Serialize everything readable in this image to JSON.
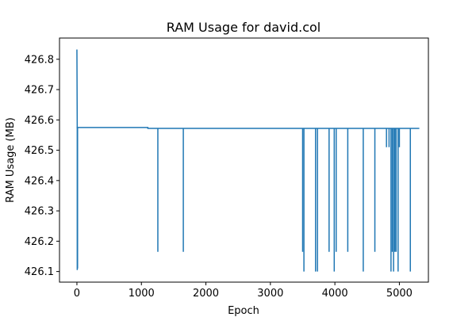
{
  "chart_data": {
    "type": "line",
    "title": "RAM Usage for david.col",
    "xlabel": "Epoch",
    "ylabel": "RAM Usage (MB)",
    "xlim": [
      -270,
      5450
    ],
    "ylim": [
      426.065,
      426.87
    ],
    "xticks": [
      0,
      1000,
      2000,
      3000,
      4000,
      5000
    ],
    "yticks": [
      426.1,
      426.2,
      426.3,
      426.4,
      426.5,
      426.6,
      426.7,
      426.8
    ],
    "ytick_labels": [
      "426.1",
      "426.2",
      "426.3",
      "426.4",
      "426.5",
      "426.6",
      "426.7",
      "426.8"
    ],
    "grid": false,
    "line_color": "#1f77b4",
    "series": [
      {
        "baseline_segments": [
          {
            "x": [
              0,
              5
            ],
            "y": [
              426.83,
              426.575
            ]
          },
          {
            "x": [
              5,
              1100
            ],
            "y": [
              426.575,
              426.575
            ]
          },
          {
            "x": [
              1100,
              5300
            ],
            "y": [
              426.572,
              426.572
            ]
          }
        ],
        "dips": [
          {
            "x": 5,
            "y": 426.105
          },
          {
            "x": 10,
            "y": 426.11
          },
          {
            "x": 1255,
            "y": 426.165
          },
          {
            "x": 1650,
            "y": 426.165
          },
          {
            "x": 3500,
            "y": 426.165
          },
          {
            "x": 3520,
            "y": 426.1
          },
          {
            "x": 3700,
            "y": 426.1
          },
          {
            "x": 3730,
            "y": 426.1
          },
          {
            "x": 3910,
            "y": 426.165
          },
          {
            "x": 3990,
            "y": 426.1
          },
          {
            "x": 4020,
            "y": 426.165
          },
          {
            "x": 4200,
            "y": 426.165
          },
          {
            "x": 4440,
            "y": 426.1
          },
          {
            "x": 4620,
            "y": 426.165
          },
          {
            "x": 4800,
            "y": 426.51
          },
          {
            "x": 4840,
            "y": 426.51
          },
          {
            "x": 4870,
            "y": 426.1
          },
          {
            "x": 4890,
            "y": 426.165
          },
          {
            "x": 4910,
            "y": 426.1
          },
          {
            "x": 4930,
            "y": 426.165
          },
          {
            "x": 4950,
            "y": 426.165
          },
          {
            "x": 4980,
            "y": 426.1
          },
          {
            "x": 5000,
            "y": 426.51
          },
          {
            "x": 5170,
            "y": 426.1
          }
        ]
      }
    ]
  }
}
